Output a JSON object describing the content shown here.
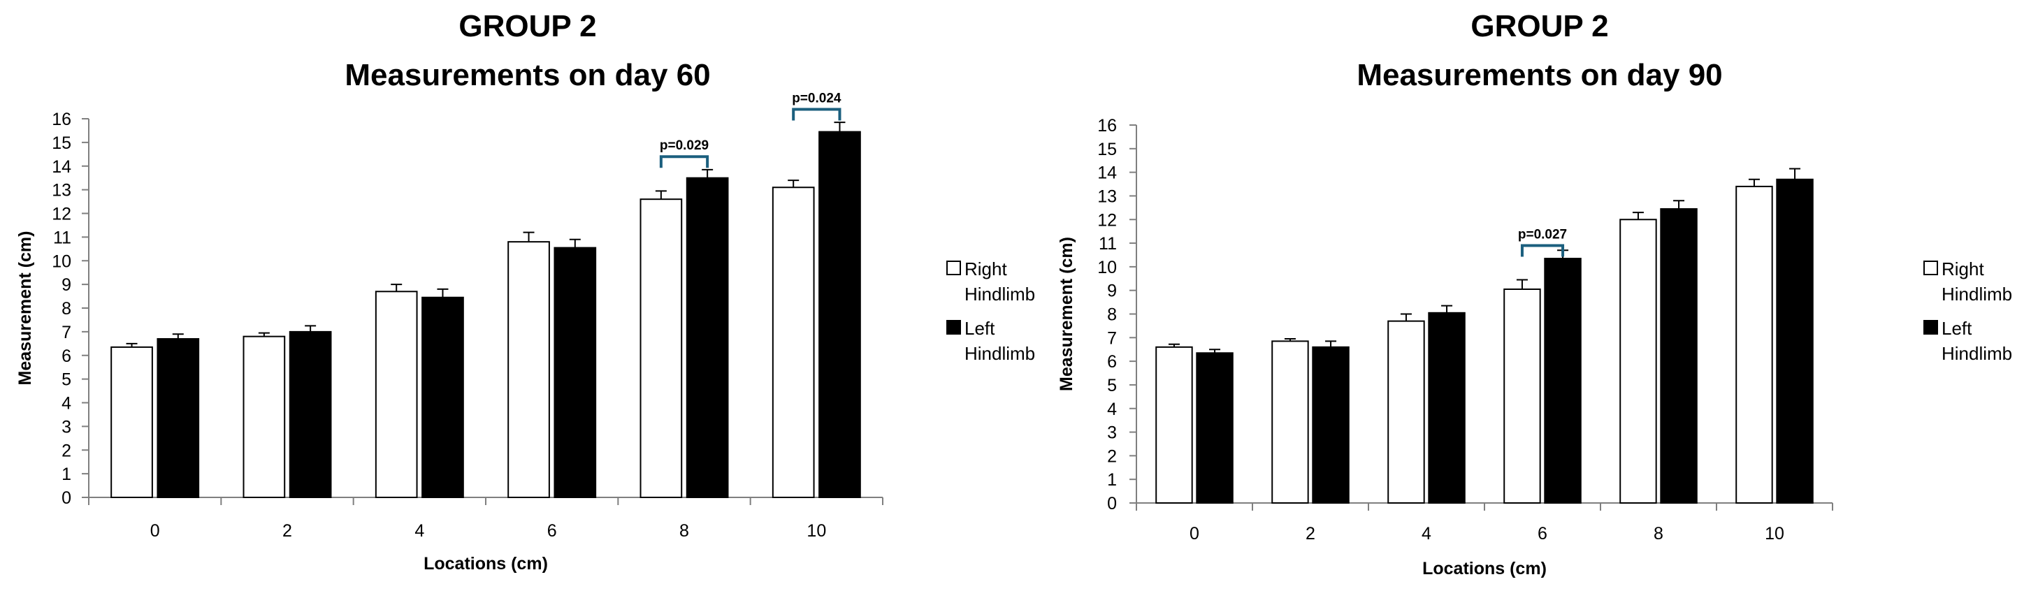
{
  "chart_data": [
    {
      "type": "bar",
      "title_lines": [
        "GROUP 2",
        "Measurements on day 60"
      ],
      "xlabel": "Locations (cm)",
      "ylabel": "Measurement (cm)",
      "categories": [
        "0",
        "2",
        "4",
        "6",
        "8",
        "10"
      ],
      "ylim": [
        0,
        16
      ],
      "yticks": [
        "0",
        "1",
        "2",
        "3",
        "4",
        "5",
        "6",
        "7",
        "8",
        "9",
        "10",
        "11",
        "12",
        "13",
        "14",
        "15",
        "16"
      ],
      "grid": false,
      "legend_position": "right",
      "series": [
        {
          "name": "Right Hindlimb",
          "color": "#ffffff",
          "values": [
            6.35,
            6.8,
            8.7,
            10.8,
            12.6,
            13.1
          ],
          "errors": [
            0.15,
            0.15,
            0.3,
            0.4,
            0.35,
            0.3
          ]
        },
        {
          "name": "Left Hindlimb",
          "color": "#000000",
          "values": [
            6.7,
            7.0,
            8.45,
            10.55,
            13.5,
            15.45
          ],
          "errors": [
            0.2,
            0.25,
            0.35,
            0.35,
            0.35,
            0.4
          ]
        }
      ],
      "annotations": [
        {
          "text": "p=0.029",
          "category": 4,
          "y": 14.4
        },
        {
          "text": "p=0.024",
          "category": 5,
          "y": 16.4
        }
      ],
      "legend_labels": [
        [
          "Right",
          "Hindlimb"
        ],
        [
          "Left",
          "Hindlimb"
        ]
      ]
    },
    {
      "type": "bar",
      "title_lines": [
        "GROUP 2",
        "Measurements on day 90"
      ],
      "xlabel": "Locations (cm)",
      "ylabel": "Measurement (cm)",
      "categories": [
        "0",
        "2",
        "4",
        "6",
        "8",
        "10"
      ],
      "ylim": [
        0,
        16
      ],
      "yticks": [
        "0",
        "1",
        "2",
        "3",
        "4",
        "5",
        "6",
        "7",
        "8",
        "9",
        "10",
        "11",
        "12",
        "13",
        "14",
        "15",
        "16"
      ],
      "grid": false,
      "legend_position": "right",
      "series": [
        {
          "name": "Right Hindlimb",
          "color": "#ffffff",
          "values": [
            6.6,
            6.85,
            7.7,
            9.05,
            12.0,
            13.4
          ],
          "errors": [
            0.12,
            0.1,
            0.3,
            0.4,
            0.3,
            0.3
          ]
        },
        {
          "name": "Left Hindlimb",
          "color": "#000000",
          "values": [
            6.35,
            6.6,
            8.05,
            10.35,
            12.45,
            13.7
          ],
          "errors": [
            0.15,
            0.25,
            0.3,
            0.35,
            0.35,
            0.45
          ]
        }
      ],
      "annotations": [
        {
          "text": "p=0.027",
          "category": 3,
          "y": 10.9
        }
      ],
      "legend_labels": [
        [
          "Right",
          "Hindlimb"
        ],
        [
          "Left",
          "Hindlimb"
        ]
      ]
    }
  ],
  "colors": {
    "bracket": "#1b5f7e",
    "axis": "#7f7f7f"
  }
}
